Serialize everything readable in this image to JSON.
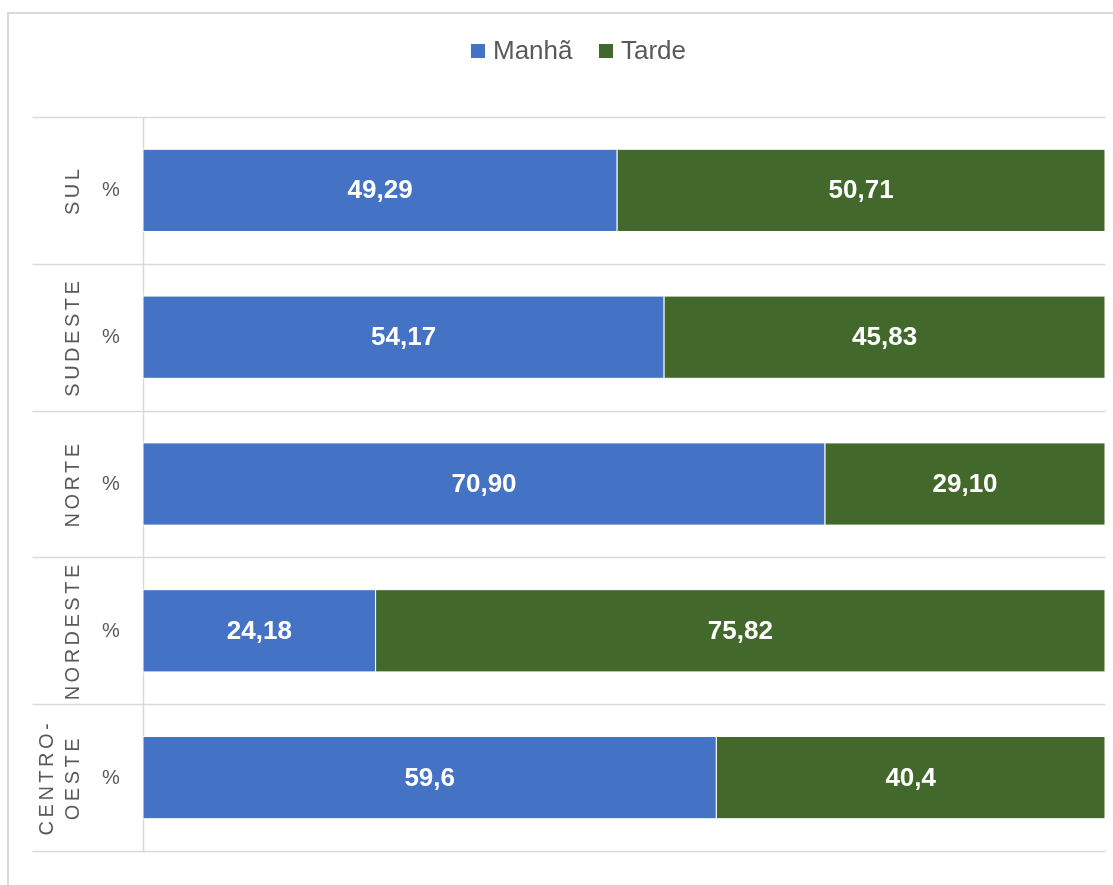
{
  "chart_data": {
    "type": "bar",
    "orientation": "horizontal",
    "stacked": true,
    "categories": [
      "SUL",
      "SUDESTE",
      "NORTE",
      "NORDESTE",
      "CENTRO-OESTE"
    ],
    "series": [
      {
        "name": "Manhã",
        "color": "#4472c4",
        "values": [
          49.29,
          54.17,
          70.9,
          24.18,
          59.6
        ],
        "value_labels": [
          "49,29",
          "54,17",
          "70,90",
          "24,18",
          "59,6"
        ]
      },
      {
        "name": "Tarde",
        "color": "#43682b",
        "values": [
          50.71,
          45.83,
          29.1,
          75.82,
          40.4
        ],
        "value_labels": [
          "50,71",
          "45,83",
          "29,10",
          "75,82",
          "40,4"
        ]
      }
    ],
    "annotations": [
      "%",
      "%",
      "%",
      "%",
      "%"
    ],
    "legend": "top",
    "grid": "y"
  }
}
